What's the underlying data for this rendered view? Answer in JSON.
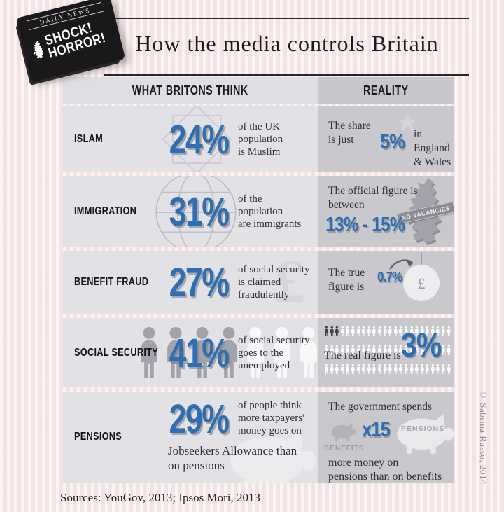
{
  "badge": {
    "masthead": "DAILY NEWS",
    "shout": "SHOCK!\nHORROR!"
  },
  "title": "How the media controls Britain",
  "columns": {
    "think": "WHAT BRITONS THINK",
    "reality": "REALITY"
  },
  "rows": [
    {
      "label": "ISLAM",
      "think": {
        "value": "24%",
        "text": "of the UK\npopulation\nis Muslim"
      },
      "reality": {
        "lead": "The share\nis just",
        "value": "5%",
        "tail": "in England\n& Wales"
      }
    },
    {
      "label": "IMMIGRATION",
      "think": {
        "value": "31%",
        "text": "of the\npopulation\nare immigrants"
      },
      "reality": {
        "lead": "The official figure is\nbetween",
        "value": "13% - 15%",
        "stamp": "NO VACANCIES"
      }
    },
    {
      "label": "BENEFIT FRAUD",
      "think": {
        "value": "27%",
        "text": "of social security\nis claimed\nfraudulently"
      },
      "reality": {
        "lead": "The true\nfigure is",
        "value": "0.7%",
        "pound_sign": "£"
      }
    },
    {
      "label": "SOCIAL SECURITY",
      "think": {
        "value": "41%",
        "text": "of social security\ngoes to the\nunemployed"
      },
      "reality": {
        "lead": "The real figure is",
        "value": "3%",
        "pictogram": {
          "rows": 3,
          "cols": 24,
          "dark": 3
        }
      }
    },
    {
      "label": "PENSIONS",
      "think": {
        "value": "29%",
        "text": "of people think\nmore taxpayers'\nmoney goes on",
        "text2": "Jobseekers Allowance than\non pensions"
      },
      "reality": {
        "lead": "The government spends",
        "multiplier": "x15",
        "small_pig_label": "BENEFITS",
        "big_pig_label": "PENSIONS",
        "tail": "more money on\npensions than on benefits"
      }
    }
  ],
  "think_bg_pound": "£",
  "footer": {
    "sources": "Sources: YouGov, 2013; Ipsos Mori, 2013"
  },
  "credit": "© Sabrina Russo, 2014",
  "icons": {
    "badge-uk": "great-britain-silhouette",
    "islam-think": "rub-el-hizb-eight-point-star",
    "islam-reality": "crescent-and-star",
    "immigration-think": "globe-grid",
    "immigration-reality": "great-britain-silhouette",
    "benefit-fraud-think": "pound-sign",
    "benefit-fraud-reality": "pound-balloon-with-arrow",
    "social-security": "person-silhouette",
    "pensions": "piggy-bank-silhouette"
  },
  "colors": {
    "accent_blue": "#2f6eb0",
    "page_bg": "#f9ecec",
    "think_bg": "#e2e2e6",
    "reality_bg": "#c8c8cd",
    "badge_bg": "#1a181b",
    "ink": "#22222a"
  },
  "chart_data": {
    "type": "table",
    "title": "How the media controls Britain",
    "categories": [
      "Islam",
      "Immigration",
      "Benefit fraud",
      "Social security",
      "Pensions"
    ],
    "series": [
      {
        "name": "What Britons think (%)",
        "values": [
          24,
          31,
          27,
          41,
          29
        ]
      },
      {
        "name": "Reality",
        "values": [
          "5% in England & Wales",
          "13%-15%",
          "0.7%",
          "3%",
          "x15 more on pensions than benefits"
        ]
      }
    ],
    "notes": "Sources: YouGov, 2013; Ipsos Mori, 2013"
  }
}
